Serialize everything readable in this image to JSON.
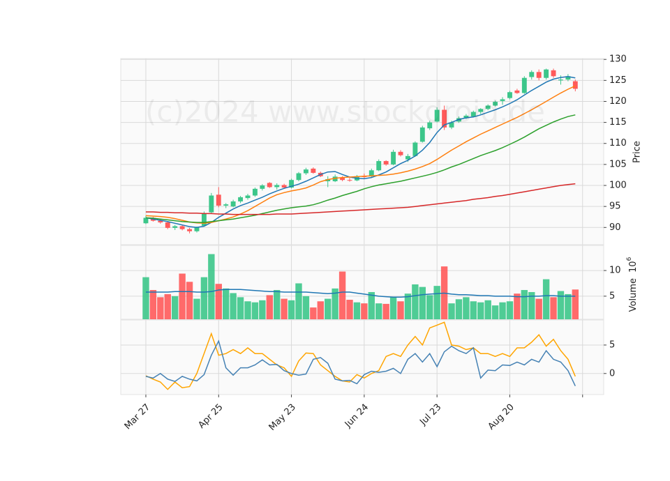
{
  "chart_data": [
    {
      "type": "candlestick",
      "ylabel": "Price",
      "annotation": "(c)2024 www.stockdroid.de",
      "up_color": "#3cc68a",
      "down_color": "#ff5a5a",
      "x": [
        0,
        2,
        4,
        6,
        8,
        10,
        12,
        14,
        16,
        18,
        20,
        22,
        24,
        26,
        28,
        30,
        32,
        34,
        36,
        38,
        40,
        42,
        44,
        46,
        48,
        50,
        52,
        54,
        56,
        58,
        60,
        62,
        64,
        66,
        68,
        70,
        72,
        74,
        76,
        78,
        80,
        82,
        84,
        86,
        88,
        90,
        92,
        94,
        96,
        98,
        100,
        102,
        104,
        106,
        108,
        110,
        112,
        114,
        116,
        118
      ],
      "xlim": [
        -6.9,
        125.8
      ],
      "ylim": [
        85.9,
        130.2
      ],
      "yticks": [
        90,
        95,
        100,
        105,
        110,
        115,
        120,
        125,
        130
      ],
      "grid": true,
      "open": [
        91.0,
        92.3,
        91.6,
        91.2,
        89.9,
        90.3,
        89.6,
        89.1,
        90.4,
        93.6,
        97.8,
        95.2,
        95.0,
        96.2,
        97.0,
        97.6,
        99.2,
        100.6,
        99.6,
        100.1,
        99.5,
        101.3,
        102.9,
        104.0,
        103.0,
        101.0,
        101.0,
        101.8,
        101.3,
        101.2,
        102.2,
        102.2,
        103.6,
        105.8,
        105.0,
        108.0,
        106.2,
        107.0,
        110.4,
        113.6,
        115.2,
        118.0,
        113.8,
        115.2,
        116.0,
        116.4,
        117.5,
        118.2,
        119.0,
        120.1,
        120.8,
        122.6,
        122.0,
        125.8,
        127.0,
        125.6,
        127.4,
        125.0,
        125.2,
        124.8
      ],
      "high": [
        92.8,
        92.5,
        92.0,
        91.5,
        90.6,
        90.6,
        89.9,
        90.2,
        93.8,
        98.2,
        99.6,
        95.8,
        96.6,
        97.5,
        98.0,
        99.5,
        100.3,
        100.8,
        100.5,
        100.4,
        101.6,
        103.2,
        104.2,
        104.3,
        103.3,
        102.2,
        102.6,
        102.2,
        101.8,
        102.5,
        102.8,
        104.0,
        106.2,
        106.0,
        108.5,
        108.4,
        107.5,
        110.5,
        114.2,
        115.4,
        118.6,
        119.0,
        115.4,
        116.4,
        117.0,
        117.8,
        118.4,
        119.3,
        120.2,
        121.0,
        122.5,
        123.0,
        126.0,
        127.4,
        127.6,
        127.8,
        127.8,
        126.2,
        126.5,
        125.2
      ],
      "low": [
        90.8,
        91.4,
        90.9,
        89.6,
        89.4,
        89.3,
        88.6,
        88.8,
        90.2,
        93.3,
        94.8,
        94.6,
        94.8,
        95.8,
        96.6,
        97.3,
        98.8,
        99.4,
        99.0,
        99.2,
        99.3,
        101.0,
        102.5,
        102.8,
        102.0,
        99.6,
        100.8,
        101.0,
        100.9,
        101.0,
        101.5,
        102.0,
        103.4,
        104.7,
        104.8,
        106.9,
        105.6,
        106.8,
        110.2,
        113.2,
        115.0,
        113.2,
        113.4,
        114.9,
        115.8,
        116.2,
        117.0,
        117.9,
        118.8,
        119.2,
        120.5,
        121.8,
        121.8,
        125.2,
        125.0,
        125.2,
        125.6,
        124.0,
        124.8,
        122.4
      ],
      "close": [
        92.3,
        91.6,
        91.2,
        89.9,
        90.3,
        89.6,
        89.1,
        90.0,
        93.4,
        97.6,
        95.2,
        95.5,
        96.2,
        97.2,
        97.6,
        99.2,
        100.0,
        99.6,
        100.1,
        99.5,
        101.3,
        102.9,
        103.8,
        103.0,
        102.2,
        101.5,
        102.1,
        101.3,
        101.2,
        102.2,
        102.0,
        103.6,
        105.8,
        105.0,
        108.0,
        107.2,
        107.0,
        110.2,
        113.8,
        115.0,
        118.0,
        113.8,
        115.0,
        116.0,
        116.6,
        117.5,
        118.2,
        119.0,
        119.9,
        120.5,
        122.2,
        122.0,
        125.6,
        127.0,
        125.6,
        127.6,
        126.0,
        125.2,
        126.0,
        123.0
      ],
      "series": [
        {
          "color": "#1f77b4",
          "values": [
            92.3,
            92.0,
            91.7,
            91.4,
            91.0,
            90.6,
            90.2,
            90.0,
            90.3,
            91.2,
            92.4,
            93.4,
            94.4,
            95.2,
            95.8,
            96.5,
            97.2,
            98.0,
            98.7,
            99.3,
            99.8,
            100.3,
            101.0,
            101.8,
            102.6,
            103.2,
            103.3,
            102.6,
            102.0,
            101.7,
            101.6,
            101.9,
            102.5,
            103.2,
            104.2,
            105.2,
            106.0,
            107.0,
            108.4,
            110.2,
            112.6,
            114.4,
            115.0,
            115.7,
            116.1,
            116.3,
            116.8,
            117.4,
            118.0,
            118.7,
            119.5,
            120.4,
            121.5,
            122.6,
            123.6,
            124.6,
            125.3,
            125.7,
            125.9,
            125.6
          ]
        },
        {
          "color": "#ff7f0e",
          "values": [
            92.8,
            92.7,
            92.6,
            92.4,
            92.1,
            91.7,
            91.3,
            91.1,
            91.0,
            91.2,
            91.6,
            92.0,
            92.5,
            93.2,
            94.0,
            95.0,
            96.0,
            97.0,
            97.8,
            98.3,
            98.7,
            99.0,
            99.4,
            100.1,
            100.9,
            101.4,
            101.7,
            101.9,
            102.0,
            102.1,
            102.2,
            102.3,
            102.4,
            102.5,
            102.7,
            103.0,
            103.4,
            103.9,
            104.5,
            105.2,
            106.2,
            107.3,
            108.4,
            109.4,
            110.4,
            111.3,
            112.2,
            113.0,
            113.8,
            114.6,
            115.4,
            116.2,
            117.1,
            118.0,
            119.0,
            120.0,
            121.0,
            122.0,
            122.9,
            123.7
          ]
        },
        {
          "color": "#2ca02c",
          "values": [
            92.3,
            92.2,
            92.0,
            91.8,
            91.6,
            91.4,
            91.3,
            91.2,
            91.2,
            91.4,
            91.6,
            91.8,
            92.0,
            92.3,
            92.6,
            92.9,
            93.3,
            93.7,
            94.1,
            94.4,
            94.7,
            94.9,
            95.1,
            95.4,
            95.9,
            96.5,
            97.0,
            97.6,
            98.1,
            98.6,
            99.2,
            99.7,
            100.1,
            100.4,
            100.7,
            101.0,
            101.4,
            101.8,
            102.2,
            102.6,
            103.1,
            103.7,
            104.4,
            105.0,
            105.7,
            106.4,
            107.1,
            107.7,
            108.3,
            109.0,
            109.8,
            110.6,
            111.5,
            112.5,
            113.5,
            114.3,
            115.1,
            115.8,
            116.4,
            116.8
          ]
        },
        {
          "color": "#d62728",
          "values": [
            93.7,
            93.7,
            93.6,
            93.6,
            93.5,
            93.5,
            93.4,
            93.4,
            93.3,
            93.3,
            93.2,
            93.2,
            93.1,
            93.1,
            93.1,
            93.1,
            93.1,
            93.1,
            93.2,
            93.2,
            93.2,
            93.3,
            93.4,
            93.5,
            93.6,
            93.7,
            93.8,
            93.9,
            94.0,
            94.1,
            94.2,
            94.3,
            94.4,
            94.5,
            94.6,
            94.7,
            94.8,
            95.0,
            95.2,
            95.4,
            95.6,
            95.8,
            96.0,
            96.2,
            96.4,
            96.7,
            96.9,
            97.1,
            97.4,
            97.6,
            97.9,
            98.2,
            98.5,
            98.8,
            99.1,
            99.4,
            99.7,
            100.0,
            100.2,
            100.4
          ]
        }
      ]
    },
    {
      "type": "bar",
      "ylabel": "Volume",
      "ylabel_exponent": {
        "base": "10",
        "power": "6"
      },
      "up_color": "#3cc68a",
      "down_color": "#ff5a5a",
      "x": [
        0,
        2,
        4,
        6,
        8,
        10,
        12,
        14,
        16,
        18,
        20,
        22,
        24,
        26,
        28,
        30,
        32,
        34,
        36,
        38,
        40,
        42,
        44,
        46,
        48,
        50,
        52,
        54,
        56,
        58,
        60,
        62,
        64,
        66,
        68,
        70,
        72,
        74,
        76,
        78,
        80,
        82,
        84,
        86,
        88,
        90,
        92,
        94,
        96,
        98,
        100,
        102,
        104,
        106,
        108,
        110,
        112,
        114,
        116,
        118
      ],
      "xlim": [
        -6.9,
        125.8
      ],
      "ylim": [
        0.5,
        14.9
      ],
      "yticks": [
        5,
        10
      ],
      "grid": true,
      "values": [
        8.7,
        6.2,
        4.8,
        5.4,
        5.0,
        9.4,
        7.8,
        4.5,
        8.7,
        13.2,
        7.4,
        6.5,
        5.6,
        4.8,
        4.0,
        3.8,
        4.2,
        5.2,
        6.2,
        4.5,
        4.2,
        7.5,
        5.0,
        2.8,
        4.0,
        4.5,
        6.5,
        9.8,
        4.3,
        3.8,
        3.6,
        5.8,
        3.6,
        3.5,
        4.8,
        4.0,
        5.5,
        7.3,
        6.8,
        5.2,
        7.0,
        10.8,
        3.6,
        4.4,
        4.8,
        4.0,
        3.8,
        4.2,
        3.2,
        3.8,
        4.0,
        5.5,
        6.2,
        5.8,
        4.5,
        8.3,
        4.8,
        6.0,
        5.4,
        6.3
      ],
      "series": [
        {
          "color": "#1f77b4",
          "values": [
            5.8,
            5.8,
            5.8,
            5.8,
            5.9,
            5.9,
            5.9,
            5.8,
            5.8,
            5.9,
            6.2,
            6.3,
            6.3,
            6.3,
            6.2,
            6.1,
            6.0,
            5.9,
            5.9,
            5.8,
            5.8,
            5.8,
            5.8,
            5.7,
            5.6,
            5.5,
            5.6,
            5.8,
            5.8,
            5.6,
            5.4,
            5.2,
            5.0,
            4.9,
            4.8,
            4.8,
            4.9,
            5.1,
            5.3,
            5.4,
            5.5,
            5.6,
            5.4,
            5.3,
            5.3,
            5.2,
            5.1,
            5.1,
            5.0,
            5.0,
            5.0,
            4.9,
            4.9,
            5.0,
            5.0,
            5.1,
            5.1,
            5.0,
            5.0,
            5.0
          ]
        }
      ]
    },
    {
      "type": "line",
      "x": [
        0,
        2,
        4,
        6,
        8,
        10,
        12,
        14,
        16,
        18,
        20,
        22,
        24,
        26,
        28,
        30,
        32,
        34,
        36,
        38,
        40,
        42,
        44,
        46,
        48,
        50,
        52,
        54,
        56,
        58,
        60,
        62,
        64,
        66,
        68,
        70,
        72,
        74,
        76,
        78,
        80,
        82,
        84,
        86,
        88,
        90,
        92,
        94,
        96,
        98,
        100,
        102,
        104,
        106,
        108,
        110,
        112,
        114,
        116,
        118
      ],
      "xlim": [
        -6.9,
        125.8
      ],
      "ylim": [
        -3.7,
        9.4
      ],
      "yticks": [
        0,
        5
      ],
      "grid": true,
      "xticks": [
        {
          "value": 0,
          "label": "Mar 27"
        },
        {
          "value": 20,
          "label": "Apr 25"
        },
        {
          "value": 40,
          "label": "May 23"
        },
        {
          "value": 60,
          "label": "Jun 24"
        },
        {
          "value": 80,
          "label": "Jul 23"
        },
        {
          "value": 100,
          "label": "Aug 20"
        },
        {
          "value": 120,
          "label": null
        }
      ],
      "series": [
        {
          "color": "#ffa500",
          "values": [
            -0.4,
            -1.0,
            -1.5,
            -2.8,
            -1.5,
            -2.5,
            -2.3,
            0.0,
            3.5,
            7.0,
            3.2,
            3.5,
            4.2,
            3.5,
            4.5,
            3.5,
            3.5,
            2.5,
            1.5,
            1.0,
            -0.5,
            2.2,
            3.6,
            3.5,
            1.5,
            0.5,
            -0.5,
            -1.3,
            -1.5,
            -0.2,
            -0.8,
            0.0,
            0.5,
            3.0,
            3.5,
            3.0,
            5.0,
            6.5,
            5.0,
            8.0,
            8.5,
            9.0,
            5.0,
            4.8,
            4.2,
            4.5,
            3.5,
            3.5,
            3.0,
            3.5,
            3.0,
            4.5,
            4.5,
            5.5,
            6.8,
            4.8,
            6.0,
            4.0,
            2.5,
            -0.5
          ]
        },
        {
          "color": "#4682b4",
          "values": [
            -0.5,
            -0.8,
            0.0,
            -1.0,
            -1.4,
            -0.5,
            -1.0,
            -1.3,
            -0.2,
            3.2,
            5.7,
            1.0,
            -0.3,
            1.0,
            1.0,
            1.5,
            2.4,
            1.5,
            1.6,
            0.5,
            0.0,
            -0.3,
            -0.1,
            2.5,
            2.8,
            1.8,
            -1.0,
            -1.3,
            -1.2,
            -1.8,
            -0.2,
            0.4,
            0.2,
            0.4,
            0.9,
            0.0,
            2.5,
            3.5,
            2.0,
            3.5,
            1.2,
            3.8,
            4.8,
            4.0,
            3.5,
            4.5,
            -0.8,
            0.6,
            0.5,
            1.5,
            1.4,
            2.0,
            1.5,
            2.5,
            2.0,
            4.0,
            2.5,
            2.0,
            0.5,
            -2.2
          ]
        }
      ]
    }
  ]
}
